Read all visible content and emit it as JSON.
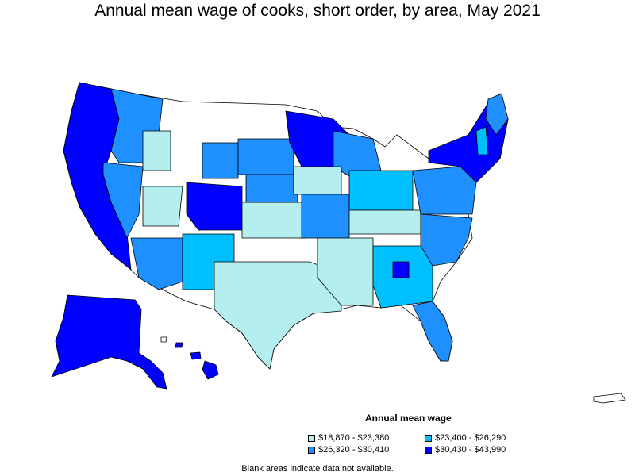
{
  "title": "Annual mean wage of cooks, short order, by area, May 2021",
  "legend": {
    "title": "Annual mean wage",
    "items": [
      {
        "label": "$18,870 - $23,380",
        "color": "#b4eeee"
      },
      {
        "label": "$23,400 - $26,290",
        "color": "#00bfff"
      },
      {
        "label": "$26,320 - $30,410",
        "color": "#1e90ff"
      },
      {
        "label": "$30,430 - $43,990",
        "color": "#0000ff"
      }
    ]
  },
  "footnote": "Blank areas indicate data not available."
}
